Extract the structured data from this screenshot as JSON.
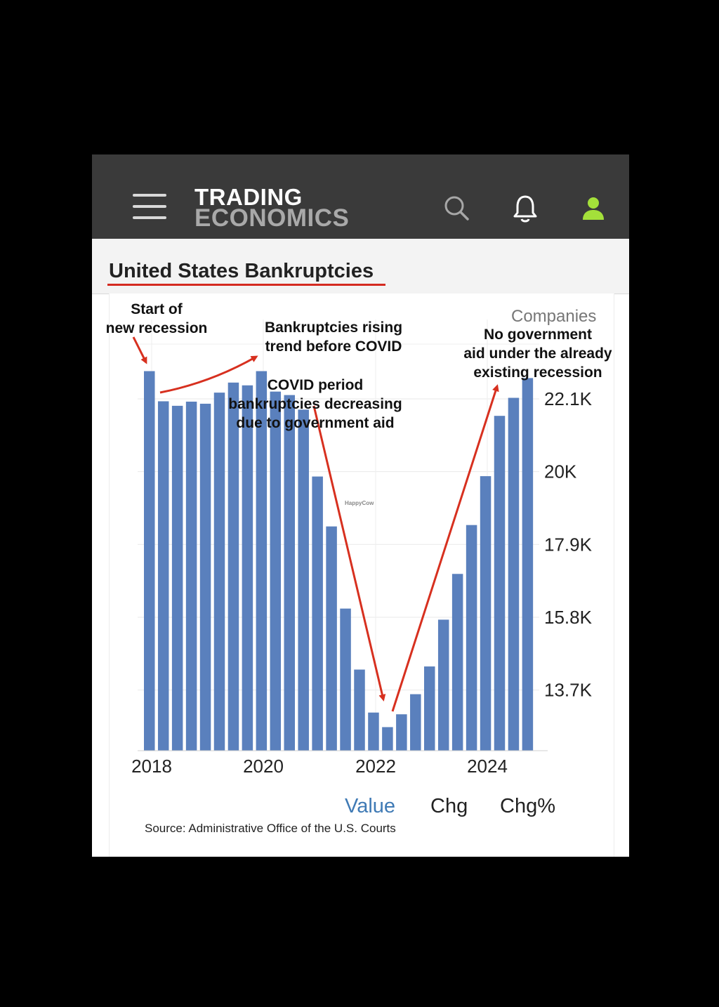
{
  "header": {
    "logo_line1": "TRADING",
    "logo_line2": "ECONOMICS",
    "icons": [
      "menu-icon",
      "search-icon",
      "bell-icon",
      "user-icon"
    ],
    "user_icon_color": "#a4e03a"
  },
  "page": {
    "title": "United States Bankruptcies"
  },
  "chart_data": {
    "type": "bar",
    "title": "United States Bankruptcies",
    "unit_label": "Companies",
    "bar_color": "#5a80bd",
    "x_ticks": [
      "2018",
      "2020",
      "2022",
      "2024"
    ],
    "y_ticks": [
      "13.7K",
      "15.8K",
      "17.9K",
      "20K",
      "22.1K"
    ],
    "y_tick_values": [
      13700,
      15800,
      17900,
      20000,
      22100
    ],
    "ylim": [
      11700,
      24100
    ],
    "quarters": [
      "2018Q1",
      "2018Q2",
      "2018Q3",
      "2018Q4",
      "2019Q1",
      "2019Q2",
      "2019Q3",
      "2019Q4",
      "2020Q1",
      "2020Q2",
      "2020Q3",
      "2020Q4",
      "2021Q1",
      "2021Q2",
      "2021Q3",
      "2021Q4",
      "2022Q1",
      "2022Q2",
      "2022Q3",
      "2022Q4",
      "2023Q1",
      "2023Q2",
      "2023Q3",
      "2023Q4",
      "2024Q1",
      "2024Q2",
      "2024Q3",
      "2024Q4"
    ],
    "values": [
      22900,
      22030,
      21900,
      22020,
      21960,
      22280,
      22570,
      22490,
      22900,
      22310,
      22210,
      21790,
      19860,
      18420,
      16050,
      14290,
      13050,
      12630,
      13000,
      13580,
      14380,
      15730,
      17050,
      18460,
      19870,
      21610,
      22130,
      22700
    ],
    "grid": true,
    "legend": "none",
    "controls": [
      "Value",
      "Chg",
      "Chg%"
    ],
    "active_control": "Value",
    "source": "Source: Administrative Office of the U.S. Courts",
    "watermark": "HappyCow",
    "annotations": [
      {
        "id": "recession-start",
        "lines": [
          "Start of",
          "new recession"
        ]
      },
      {
        "id": "rising-trend",
        "lines": [
          "Bankruptcies rising",
          "trend before COVID"
        ]
      },
      {
        "id": "covid-period",
        "lines": [
          "COVID period",
          "bankruptcies decreasing",
          "due to government aid"
        ]
      },
      {
        "id": "no-aid",
        "lines": [
          "No government",
          "aid under the already",
          "existing recession"
        ]
      }
    ],
    "annotation_color": "#d7301f"
  }
}
